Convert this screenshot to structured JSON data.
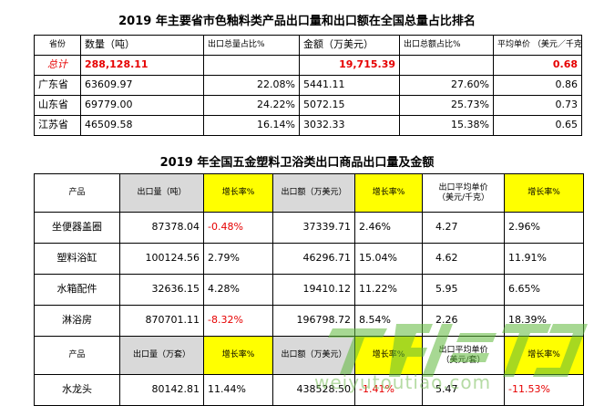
{
  "table1": {
    "title": "2019 年主要省市色釉料类产品出口量和出口额在全国总量占比排名",
    "headers": [
      "省份",
      "数量（吨）",
      "出口总量占比%",
      "金额（万美元）",
      "出口总额占比%",
      "平均单价 （美元／千克）"
    ],
    "total": {
      "label": "总计",
      "qty": "288,128.11",
      "amount": "19,715.39",
      "price": "0.68"
    },
    "rows": [
      {
        "name": "广东省",
        "qty": "63609.97",
        "qty_pct": "22.08%",
        "amount": "5441.11",
        "amt_pct": "27.60%",
        "price": "0.86"
      },
      {
        "name": "山东省",
        "qty": "69779.00",
        "qty_pct": "24.22%",
        "amount": "5072.15",
        "amt_pct": "25.73%",
        "price": "0.73"
      },
      {
        "name": "江苏省",
        "qty": "46509.58",
        "qty_pct": "16.14%",
        "amount": "3032.33",
        "amt_pct": "15.38%",
        "price": "0.65"
      }
    ]
  },
  "table2": {
    "title": "2019 年全国五金塑料卫浴类出口商品出口量及金额",
    "headers": {
      "product": "产品",
      "qty": "出口量（吨）",
      "growth": "增长率%",
      "amount": "出口额（万美元）",
      "price_l1": "出口平均单价",
      "price_l2": "（美元/千克）"
    },
    "rows": [
      {
        "name": "坐便器盖圈",
        "qty": "87378.04",
        "g1": "-0.48%",
        "amount": "37339.71",
        "g2": "2.46%",
        "price": "4.27",
        "g3": "2.96%"
      },
      {
        "name": "塑料浴缸",
        "qty": "100124.56",
        "g1": "2.79%",
        "amount": "46296.71",
        "g2": "15.04%",
        "price": "4.62",
        "g3": "11.91%"
      },
      {
        "name": "水箱配件",
        "qty": "32636.15",
        "g1": "4.28%",
        "amount": "19410.12",
        "g2": "11.22%",
        "price": "5.95",
        "g3": "6.65%"
      },
      {
        "name": "淋浴房",
        "qty": "870701.11",
        "g1": "-8.32%",
        "amount": "196798.72",
        "g2": "8.54%",
        "price": "2.26",
        "g3": "18.39%"
      }
    ],
    "headers2": {
      "product": "产品",
      "qty": "出口量（万套）",
      "growth": "增长率%",
      "amount": "出口额（万美元）",
      "price_l1": "出口平均单价",
      "price_l2": "（美元/套）"
    },
    "row2": {
      "name": "水龙头",
      "qty": "80142.81",
      "g1": "11.44%",
      "amount": "438528.50",
      "g2": "-1.41%",
      "price": "5.47",
      "g3": "-11.53%"
    }
  },
  "watermark": {
    "text": "weiyutoutiao.com",
    "logo_color": "#5fb83a"
  }
}
